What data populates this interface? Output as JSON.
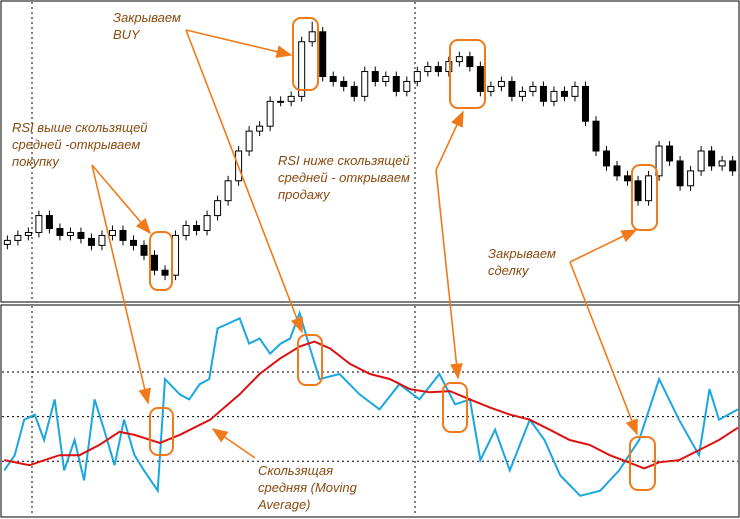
{
  "chart_data": [
    {
      "type": "candlestick",
      "ylim": [
        0,
        302
      ],
      "xlim": [
        0.3,
        70.7
      ],
      "open": [
        58,
        62,
        67,
        70,
        87,
        74,
        67,
        70,
        64,
        57,
        67,
        72,
        62,
        57,
        47,
        32,
        27,
        67,
        77,
        72,
        87,
        102,
        122,
        152,
        172,
        177,
        202,
        202,
        207,
        262,
        272,
        227,
        222,
        217,
        207,
        232,
        222,
        227,
        212,
        222,
        232,
        237,
        232,
        242,
        247,
        237,
        212,
        217,
        222,
        207,
        212,
        217,
        202,
        212,
        207,
        217,
        182,
        152,
        137,
        127,
        122,
        102,
        127,
        157,
        142,
        117,
        132,
        152,
        137,
        142
      ],
      "high": [
        67,
        72,
        75,
        92,
        92,
        79,
        75,
        75,
        69,
        72,
        77,
        77,
        67,
        62,
        52,
        37,
        72,
        82,
        82,
        92,
        107,
        127,
        157,
        177,
        182,
        207,
        207,
        212,
        267,
        282,
        277,
        232,
        227,
        222,
        237,
        237,
        232,
        232,
        227,
        237,
        242,
        242,
        247,
        252,
        252,
        242,
        222,
        227,
        227,
        217,
        222,
        222,
        217,
        217,
        222,
        222,
        187,
        157,
        142,
        132,
        127,
        132,
        162,
        162,
        147,
        137,
        157,
        157,
        147,
        147
      ],
      "low": [
        53,
        57,
        62,
        65,
        69,
        62,
        62,
        59,
        52,
        52,
        62,
        57,
        52,
        42,
        27,
        22,
        22,
        62,
        67,
        67,
        82,
        97,
        117,
        147,
        167,
        172,
        197,
        197,
        202,
        257,
        222,
        217,
        212,
        202,
        202,
        217,
        217,
        207,
        207,
        217,
        227,
        227,
        227,
        237,
        232,
        207,
        207,
        212,
        202,
        202,
        207,
        197,
        197,
        202,
        202,
        177,
        147,
        132,
        122,
        117,
        97,
        97,
        122,
        137,
        112,
        112,
        127,
        132,
        132,
        127
      ],
      "close": [
        62,
        67,
        70,
        87,
        74,
        67,
        70,
        64,
        57,
        67,
        72,
        62,
        57,
        47,
        32,
        27,
        67,
        77,
        72,
        87,
        102,
        122,
        152,
        172,
        177,
        202,
        202,
        207,
        262,
        272,
        227,
        222,
        217,
        207,
        232,
        222,
        227,
        212,
        222,
        232,
        237,
        232,
        242,
        247,
        237,
        212,
        217,
        222,
        207,
        212,
        217,
        202,
        212,
        207,
        217,
        182,
        152,
        137,
        127,
        122,
        102,
        127,
        157,
        142,
        117,
        132,
        152,
        137,
        142,
        132
      ],
      "up_color": "#ffffff",
      "down_color": "#000000"
    },
    {
      "type": "line",
      "ylim": [
        5,
        100
      ],
      "xlim": [
        0.3,
        70.7
      ],
      "levels": [
        30,
        50,
        70
      ],
      "series": [
        {
          "color": "#1aa7e0",
          "x": [
            0.71,
            1.7,
            2.6,
            3.6,
            4.5,
            5.5,
            6.4,
            7.4,
            8.3,
            9.3,
            10.2,
            11.2,
            12.1,
            13.1,
            14,
            15.3,
            16,
            17.4,
            18.3,
            19.3,
            20.2,
            21,
            23.1,
            24,
            25,
            26,
            27,
            27.9,
            28.8,
            29.8,
            30.7,
            32.6,
            34.5,
            36.4,
            38.3,
            40.2,
            42.1,
            43.6,
            45,
            46,
            47.4,
            48.8,
            50.7,
            52.1,
            53.6,
            55.5,
            57.4,
            59.2,
            61.1,
            63,
            64.9,
            66.8,
            67.8,
            68.7,
            70.5
          ],
          "values": [
            25.9,
            32.7,
            48.6,
            50.9,
            39.5,
            57.7,
            25.9,
            39.5,
            21.4,
            57.7,
            44.1,
            28.2,
            48.6,
            32.7,
            25.9,
            16.8,
            66.8,
            60,
            57.7,
            64.5,
            66.8,
            89.5,
            94,
            82.7,
            85,
            78.2,
            82.7,
            85,
            96.4,
            80.5,
            66.8,
            69.1,
            60,
            53.2,
            64.5,
            57.7,
            69.1,
            55.5,
            57.7,
            30.5,
            44.1,
            25.9,
            48.6,
            39.5,
            23.6,
            14.5,
            16.8,
            25.9,
            39.5,
            66.8,
            48.6,
            32.7,
            62.3,
            48.6,
            53.2
          ]
        },
        {
          "color": "#dd1111",
          "x": [
            0.71,
            3.1,
            5.95,
            7.86,
            9.76,
            11.67,
            13.1,
            15.5,
            17.4,
            20.3,
            23.1,
            25,
            26.9,
            28.8,
            30.2,
            31.7,
            33.6,
            35.5,
            37.4,
            39.3,
            41.2,
            43.1,
            45,
            46.9,
            48.8,
            50.7,
            52.6,
            54.5,
            56.4,
            58.3,
            60.1,
            61.6,
            63,
            64.9,
            66.8,
            68.7,
            70.5
          ],
          "values": [
            30.5,
            28.2,
            32.7,
            32.7,
            37.3,
            43.2,
            41.8,
            38.2,
            41.8,
            48.6,
            60,
            69.1,
            75.9,
            81.4,
            83.6,
            80.5,
            73.6,
            69.1,
            66.8,
            62.3,
            60.9,
            61.4,
            57.7,
            54.1,
            50.9,
            48.6,
            44.1,
            39.5,
            37.3,
            32.7,
            29.5,
            26.8,
            29.5,
            30.5,
            35,
            39.5,
            45
          ]
        }
      ]
    }
  ],
  "annotations": [
    {
      "lines": [
        "Закрываем",
        "BUY"
      ]
    },
    {
      "lines": [
        "RSI выше скользящей",
        "средней -открываем",
        "покупку"
      ]
    },
    {
      "lines": [
        "RSI ниже скользящей",
        "средней - открываем",
        "продажу"
      ]
    },
    {
      "lines": [
        "Закрываем",
        "сделку"
      ]
    },
    {
      "lines": [
        "Скользящая",
        "средняя (Moving",
        "Average)"
      ]
    }
  ]
}
